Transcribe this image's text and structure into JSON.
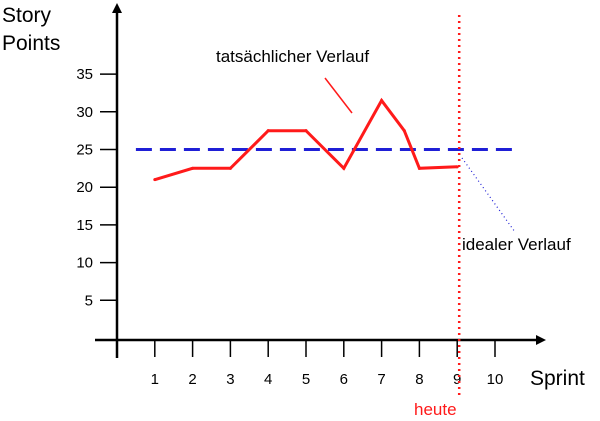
{
  "chart_data": {
    "type": "line",
    "ylabel_lines": [
      "Story",
      "Points"
    ],
    "xlabel": "Sprint",
    "x_ticks": [
      1,
      2,
      3,
      4,
      5,
      6,
      7,
      8,
      9,
      10
    ],
    "y_ticks": [
      5,
      10,
      15,
      20,
      25,
      30,
      35
    ],
    "xlim": [
      0.5,
      11.5
    ],
    "ylim": [
      -2,
      45
    ],
    "grid": false,
    "series": [
      {
        "name": "tatsächlicher Verlauf",
        "x": [
          1,
          2,
          3,
          4,
          5,
          6,
          7,
          7.6,
          8,
          9
        ],
        "values": [
          21,
          22.5,
          22.5,
          27.5,
          27.5,
          22.5,
          31.5,
          27.5,
          22.5,
          22.7
        ],
        "color": "#ff1a1a",
        "style": "solid"
      },
      {
        "name": "idealer Verlauf",
        "x": [
          0.5,
          10.5
        ],
        "values": [
          25,
          25
        ],
        "color": "#1f1fd6",
        "style": "dashed"
      }
    ],
    "today_marker": {
      "x": 9,
      "label": "heute",
      "color": "#ff1a1a",
      "style": "dotted"
    },
    "annotations": {
      "actual_label": "tatsächlicher Verlauf",
      "ideal_label": "idealer Verlauf"
    }
  }
}
